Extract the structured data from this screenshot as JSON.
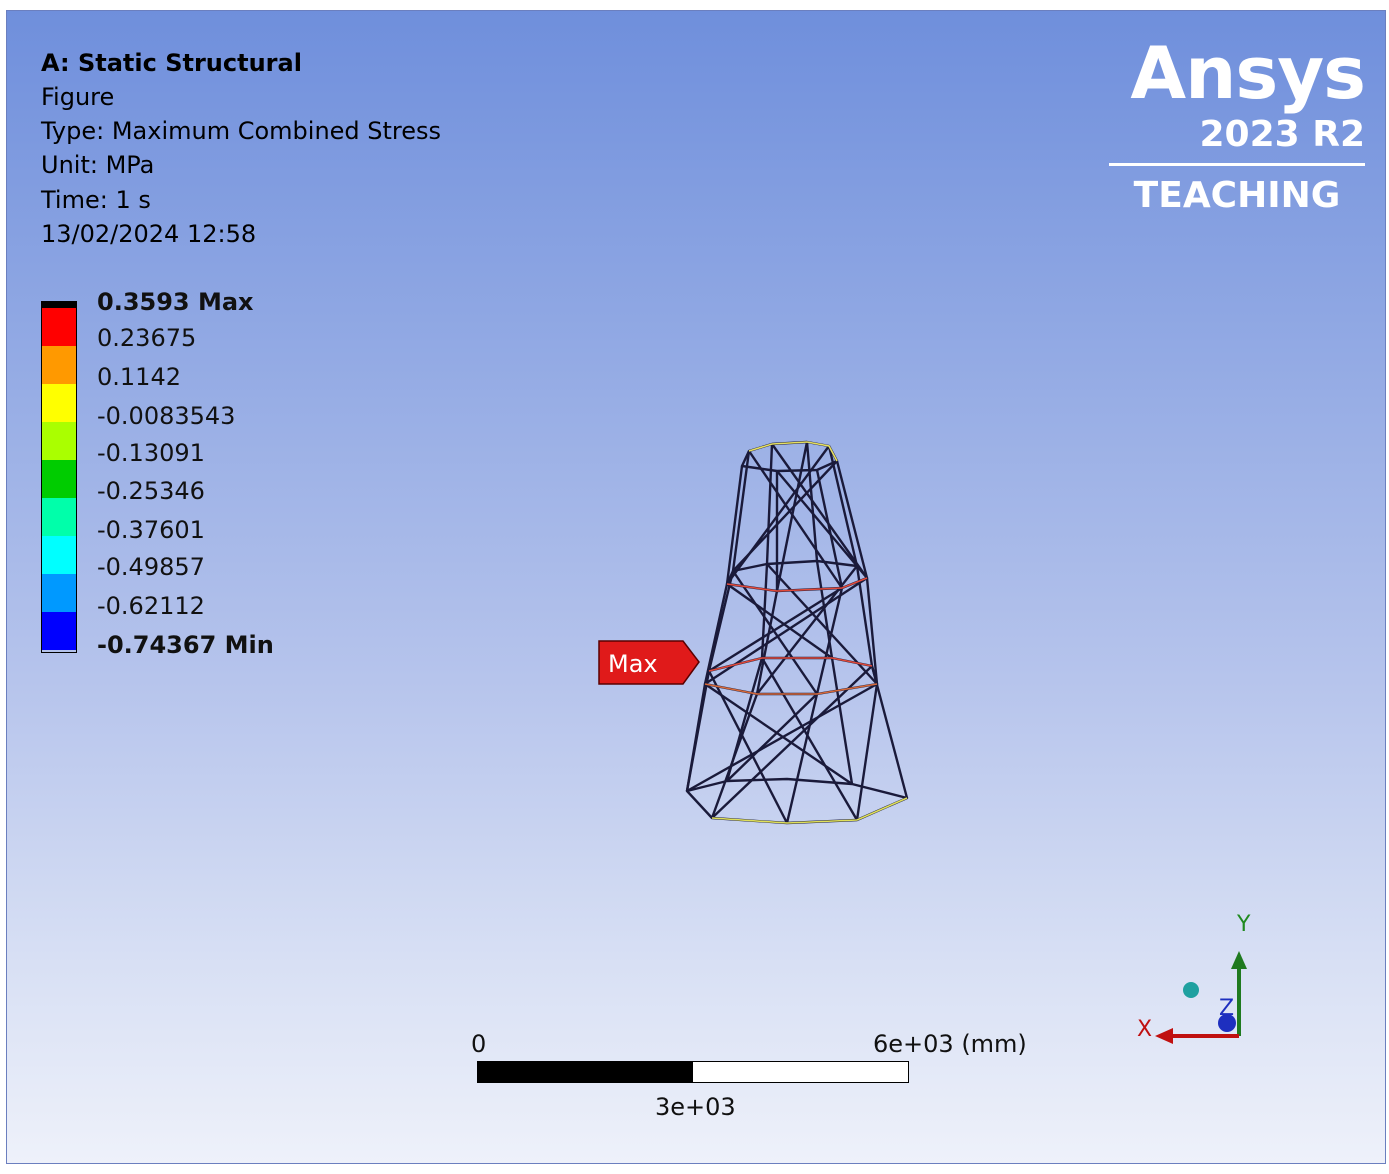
{
  "header": {
    "title": "A: Static Structural",
    "lines": [
      "Figure",
      "Type: Maximum Combined Stress",
      "Unit: MPa",
      "Time: 1 s",
      "13/02/2024 12:58"
    ]
  },
  "legend": {
    "max_label": "0.3593 Max",
    "min_label": "-0.74367 Min",
    "labels": [
      "0.23675",
      "0.1142",
      "-0.0083543",
      "-0.13091",
      "-0.25346",
      "-0.37601",
      "-0.49857",
      "-0.62112"
    ],
    "colors": [
      "#ff0000",
      "#ff9900",
      "#ffcc00",
      "#ffff00",
      "#aaff00",
      "#00cc00",
      "#00ffaa",
      "#00ffff",
      "#0099ff",
      "#0000ff"
    ]
  },
  "logo": {
    "brand": "Ansys",
    "version": "2023 R2",
    "edition": "TEACHING"
  },
  "probe": {
    "label": "Max"
  },
  "scale_bar": {
    "start": "0",
    "mid": "3e+03",
    "end": "6e+03 (mm)"
  },
  "triad": {
    "x": "X",
    "y": "Y",
    "z": "Z"
  }
}
